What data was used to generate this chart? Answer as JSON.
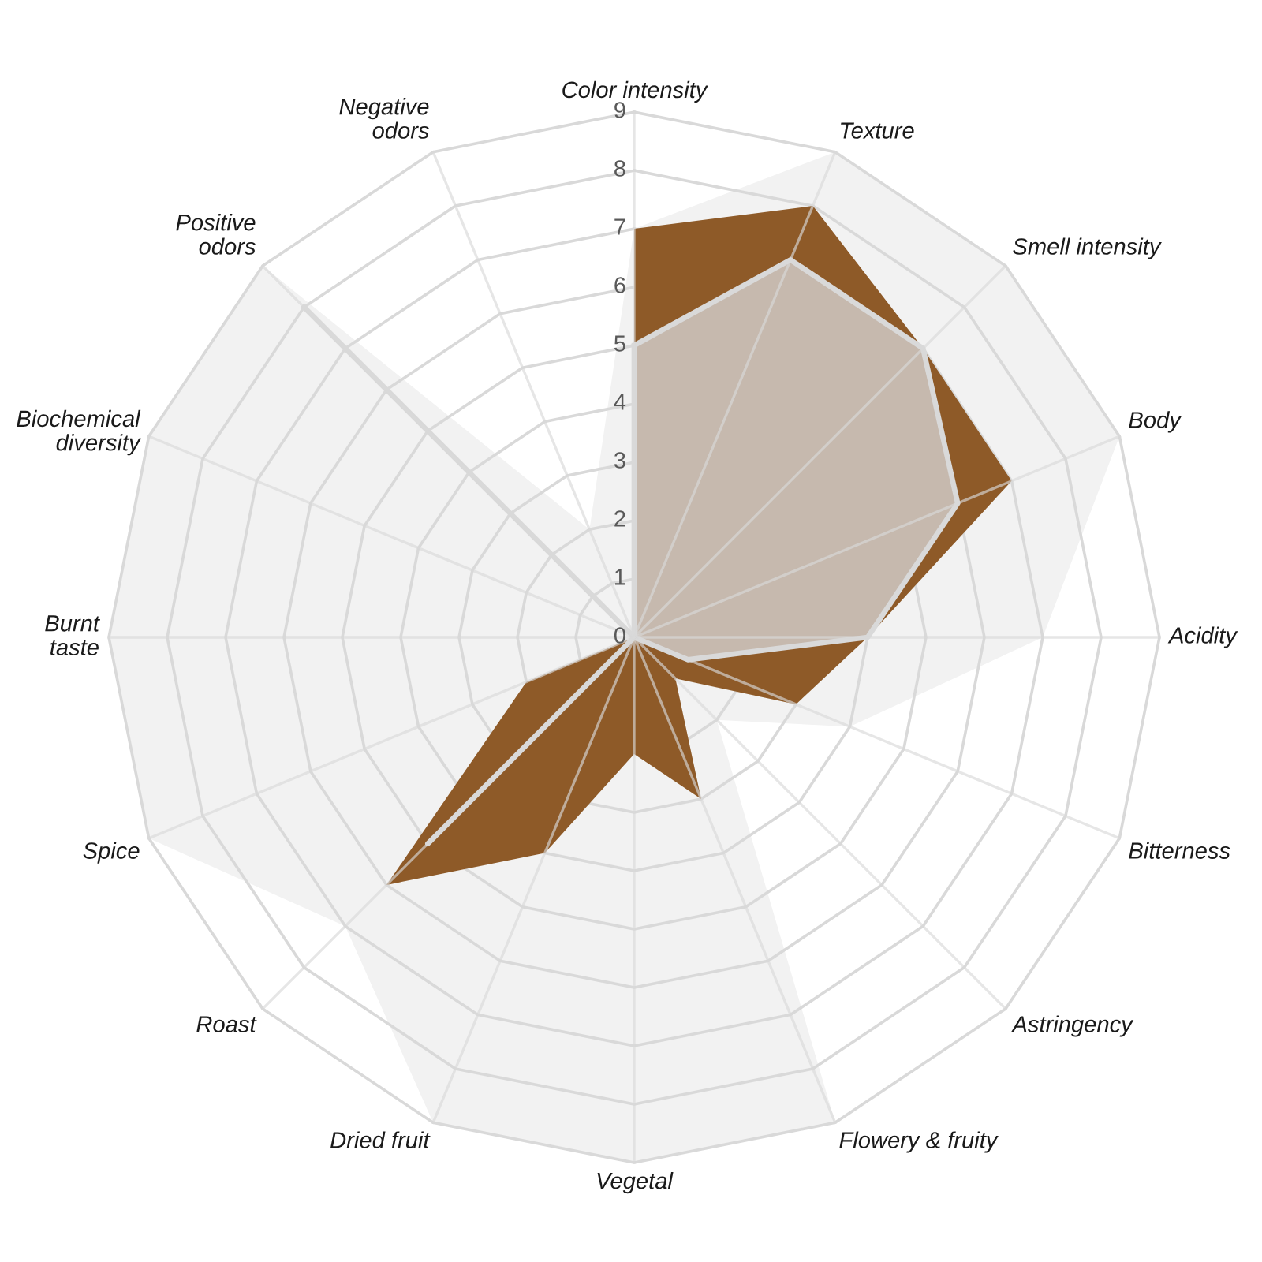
{
  "chart_data": {
    "type": "radar",
    "categories": [
      "Color intensity",
      "Texture",
      "Smell intensity",
      "Body",
      "Acidity",
      "Bitterness",
      "Astringency",
      "Flowery & fruity",
      "Vegetal",
      "Dried fruit",
      "Roast",
      "Spice",
      "Burnt\ntaste",
      "Biochemical\ndiversity",
      "Positive\nodors",
      "Negative\nodors"
    ],
    "ylim": [
      0,
      9
    ],
    "yticks": [
      0,
      1,
      2,
      3,
      4,
      5,
      6,
      7,
      8,
      9
    ],
    "grid": true,
    "series": [
      {
        "color": "#f2f2f2",
        "values": [
          7,
          9,
          9,
          9,
          7,
          4,
          2,
          9,
          9,
          9,
          7,
          9,
          9,
          9,
          9,
          2
        ]
      },
      {
        "color": "#8e5a28",
        "values": [
          7,
          8,
          7,
          7,
          4,
          3,
          1,
          3,
          2,
          4,
          6,
          2,
          0,
          0,
          0,
          0
        ]
      },
      {
        "color": "#c6b9ae",
        "line_style": "solid",
        "values": [
          5,
          7,
          7,
          6,
          4,
          1,
          0,
          0,
          0,
          0,
          5,
          0,
          0,
          0,
          8,
          0
        ]
      }
    ]
  }
}
